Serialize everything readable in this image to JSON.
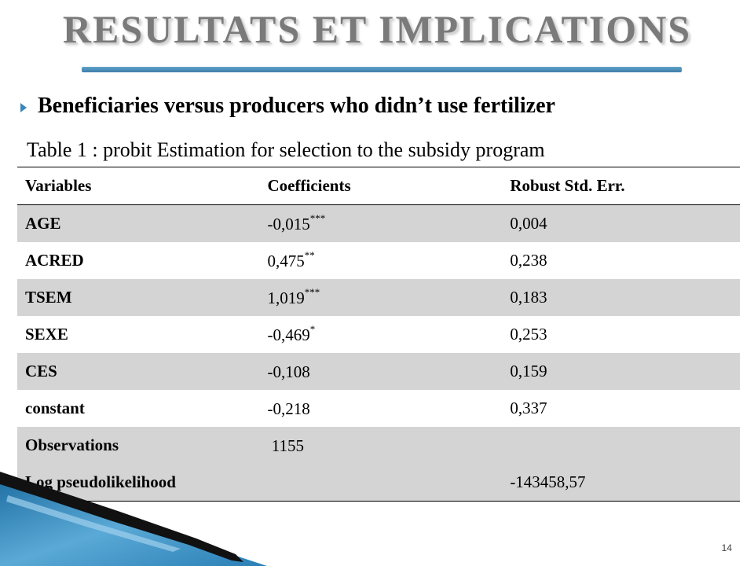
{
  "slide": {
    "title": "RESULTATS ET IMPLICATIONS",
    "bullet": "Beneficiaries versus producers who didn’t use fertilizer",
    "table_caption": "Table  1 : probit Estimation for selection to the subsidy program",
    "page_number": "14"
  },
  "table": {
    "headers": [
      "Variables",
      "Coefficients",
      "Robust Std. Err."
    ],
    "rows": [
      {
        "variable": "AGE",
        "coefficient": "-0,015",
        "stars": "***",
        "std_err": "0,004"
      },
      {
        "variable": "ACRED",
        "coefficient": "0,475",
        "stars": "**",
        "std_err": "0,238"
      },
      {
        "variable": "TSEM",
        "coefficient": "1,019",
        "stars": "***",
        "std_err": "0,183"
      },
      {
        "variable": "SEXE",
        "coefficient": "-0,469",
        "stars": "*",
        "std_err": "0,253"
      },
      {
        "variable": "CES",
        "coefficient": "-0,108",
        "stars": "",
        "std_err": "0,159"
      },
      {
        "variable": "constant",
        "coefficient": "-0,218",
        "stars": "",
        "std_err": "0,337"
      },
      {
        "variable": "Observations",
        "coefficient": " 1155",
        "stars": "",
        "std_err": ""
      },
      {
        "variable": "Log pseudolikelihood",
        "coefficient": "",
        "stars": "",
        "std_err": "-143458,57"
      }
    ]
  },
  "colors": {
    "title_gray": "#7a7a7a",
    "accent_blue": "#3f7faa",
    "row_shade": "#d4d4d4"
  }
}
